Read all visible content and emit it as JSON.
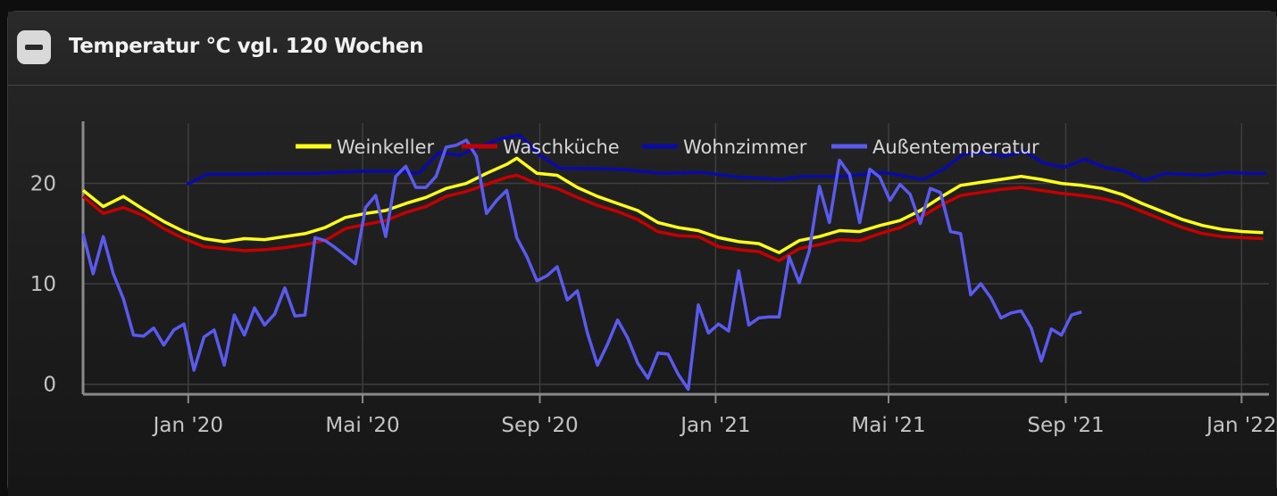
{
  "window": {
    "title": "Temperatur °C vgl. 120 Wochen"
  },
  "chart_data": {
    "type": "line",
    "title": "",
    "xlabel": "",
    "ylabel": "",
    "x_start": "2019-10-20",
    "x_end": "2022-01-20",
    "ylim": [
      -1,
      26
    ],
    "yticks": [
      {
        "value": 0,
        "label": "0"
      },
      {
        "value": 10,
        "label": "10"
      },
      {
        "value": 20,
        "label": "20"
      }
    ],
    "xticks": [
      {
        "date": "2020-01-01",
        "label": "Jan '20"
      },
      {
        "date": "2020-05-01",
        "label": "Mai '20"
      },
      {
        "date": "2020-09-01",
        "label": "Sep '20"
      },
      {
        "date": "2021-01-01",
        "label": "Jan '21"
      },
      {
        "date": "2021-05-01",
        "label": "Mai '21"
      },
      {
        "date": "2021-09-01",
        "label": "Sep '21"
      },
      {
        "date": "2022-01-01",
        "label": "Jan '22"
      }
    ],
    "grid": true,
    "legend_position": "top",
    "series": [
      {
        "name": "Weinkeller",
        "color": "#ffff1a",
        "points": [
          [
            "2019-10-20",
            19.3
          ],
          [
            "2019-11-03",
            17.7
          ],
          [
            "2019-11-17",
            18.7
          ],
          [
            "2019-12-01",
            17.4
          ],
          [
            "2019-12-15",
            16.2
          ],
          [
            "2019-12-29",
            15.2
          ],
          [
            "2020-01-12",
            14.5
          ],
          [
            "2020-01-26",
            14.2
          ],
          [
            "2020-02-09",
            14.5
          ],
          [
            "2020-02-23",
            14.4
          ],
          [
            "2020-03-08",
            14.7
          ],
          [
            "2020-03-22",
            15.0
          ],
          [
            "2020-04-05",
            15.6
          ],
          [
            "2020-04-19",
            16.6
          ],
          [
            "2020-05-03",
            17.0
          ],
          [
            "2020-05-17",
            17.3
          ],
          [
            "2020-05-31",
            18.0
          ],
          [
            "2020-06-14",
            18.6
          ],
          [
            "2020-06-28",
            19.5
          ],
          [
            "2020-07-12",
            20.0
          ],
          [
            "2020-07-26",
            21.0
          ],
          [
            "2020-08-09",
            21.9
          ],
          [
            "2020-08-16",
            22.5
          ],
          [
            "2020-08-30",
            21.0
          ],
          [
            "2020-09-13",
            20.8
          ],
          [
            "2020-09-27",
            19.6
          ],
          [
            "2020-10-11",
            18.7
          ],
          [
            "2020-10-25",
            18.0
          ],
          [
            "2020-11-08",
            17.3
          ],
          [
            "2020-11-22",
            16.1
          ],
          [
            "2020-12-06",
            15.6
          ],
          [
            "2020-12-20",
            15.3
          ],
          [
            "2021-01-03",
            14.6
          ],
          [
            "2021-01-17",
            14.2
          ],
          [
            "2021-01-31",
            14.0
          ],
          [
            "2021-02-14",
            13.1
          ],
          [
            "2021-02-28",
            14.3
          ],
          [
            "2021-03-14",
            14.7
          ],
          [
            "2021-03-28",
            15.3
          ],
          [
            "2021-04-11",
            15.2
          ],
          [
            "2021-04-25",
            15.8
          ],
          [
            "2021-05-09",
            16.3
          ],
          [
            "2021-05-23",
            17.3
          ],
          [
            "2021-06-06",
            18.6
          ],
          [
            "2021-06-20",
            19.8
          ],
          [
            "2021-07-04",
            20.1
          ],
          [
            "2021-07-18",
            20.4
          ],
          [
            "2021-08-01",
            20.7
          ],
          [
            "2021-08-15",
            20.4
          ],
          [
            "2021-08-29",
            20.0
          ],
          [
            "2021-09-12",
            19.8
          ],
          [
            "2021-09-26",
            19.5
          ],
          [
            "2021-10-10",
            18.9
          ],
          [
            "2021-10-24",
            18.0
          ],
          [
            "2021-11-07",
            17.2
          ],
          [
            "2021-11-21",
            16.4
          ],
          [
            "2021-12-05",
            15.8
          ],
          [
            "2021-12-19",
            15.4
          ],
          [
            "2022-01-02",
            15.2
          ],
          [
            "2022-01-16",
            15.1
          ]
        ]
      },
      {
        "name": "Waschküche",
        "color": "#c40000",
        "points": [
          [
            "2019-10-20",
            18.7
          ],
          [
            "2019-11-03",
            17.0
          ],
          [
            "2019-11-17",
            17.6
          ],
          [
            "2019-12-01",
            16.8
          ],
          [
            "2019-12-15",
            15.5
          ],
          [
            "2019-12-29",
            14.5
          ],
          [
            "2020-01-12",
            13.7
          ],
          [
            "2020-01-26",
            13.5
          ],
          [
            "2020-02-09",
            13.3
          ],
          [
            "2020-02-23",
            13.4
          ],
          [
            "2020-03-08",
            13.6
          ],
          [
            "2020-03-22",
            13.9
          ],
          [
            "2020-04-05",
            14.3
          ],
          [
            "2020-04-19",
            15.5
          ],
          [
            "2020-05-03",
            15.9
          ],
          [
            "2020-05-17",
            16.3
          ],
          [
            "2020-05-31",
            17.1
          ],
          [
            "2020-06-14",
            17.7
          ],
          [
            "2020-06-28",
            18.7
          ],
          [
            "2020-07-12",
            19.2
          ],
          [
            "2020-07-26",
            19.9
          ],
          [
            "2020-08-09",
            20.6
          ],
          [
            "2020-08-16",
            20.8
          ],
          [
            "2020-08-30",
            20.0
          ],
          [
            "2020-09-13",
            19.5
          ],
          [
            "2020-09-27",
            18.6
          ],
          [
            "2020-10-11",
            17.8
          ],
          [
            "2020-10-25",
            17.2
          ],
          [
            "2020-11-08",
            16.4
          ],
          [
            "2020-11-22",
            15.2
          ],
          [
            "2020-12-06",
            14.8
          ],
          [
            "2020-12-20",
            14.7
          ],
          [
            "2021-01-03",
            13.7
          ],
          [
            "2021-01-17",
            13.4
          ],
          [
            "2021-01-31",
            13.2
          ],
          [
            "2021-02-14",
            12.3
          ],
          [
            "2021-02-28",
            13.5
          ],
          [
            "2021-03-14",
            13.9
          ],
          [
            "2021-03-28",
            14.4
          ],
          [
            "2021-04-11",
            14.3
          ],
          [
            "2021-04-25",
            15.0
          ],
          [
            "2021-05-09",
            15.6
          ],
          [
            "2021-05-23",
            16.6
          ],
          [
            "2021-06-06",
            17.8
          ],
          [
            "2021-06-20",
            18.8
          ],
          [
            "2021-07-04",
            19.1
          ],
          [
            "2021-07-18",
            19.4
          ],
          [
            "2021-08-01",
            19.6
          ],
          [
            "2021-08-15",
            19.3
          ],
          [
            "2021-08-29",
            19.0
          ],
          [
            "2021-09-12",
            18.8
          ],
          [
            "2021-09-26",
            18.5
          ],
          [
            "2021-10-10",
            18.0
          ],
          [
            "2021-10-24",
            17.2
          ],
          [
            "2021-11-07",
            16.4
          ],
          [
            "2021-11-21",
            15.6
          ],
          [
            "2021-12-05",
            15.0
          ],
          [
            "2021-12-19",
            14.7
          ],
          [
            "2022-01-02",
            14.6
          ],
          [
            "2022-01-16",
            14.5
          ]
        ]
      },
      {
        "name": "Wohnzimmer",
        "color": "#0a0aa8",
        "points": [
          [
            "2019-12-31",
            19.9
          ],
          [
            "2020-01-14",
            20.9
          ],
          [
            "2020-02-04",
            20.9
          ],
          [
            "2020-03-03",
            21.0
          ],
          [
            "2020-03-31",
            21.0
          ],
          [
            "2020-04-28",
            21.2
          ],
          [
            "2020-05-26",
            21.2
          ],
          [
            "2020-06-09",
            21.0
          ],
          [
            "2020-06-23",
            23.1
          ],
          [
            "2020-07-07",
            22.8
          ],
          [
            "2020-07-21",
            23.6
          ],
          [
            "2020-08-04",
            24.4
          ],
          [
            "2020-08-18",
            24.8
          ],
          [
            "2020-09-01",
            22.8
          ],
          [
            "2020-09-15",
            21.5
          ],
          [
            "2020-09-29",
            21.5
          ],
          [
            "2020-10-27",
            21.4
          ],
          [
            "2020-11-24",
            21.0
          ],
          [
            "2020-12-22",
            21.1
          ],
          [
            "2021-01-19",
            20.6
          ],
          [
            "2021-02-16",
            20.4
          ],
          [
            "2021-03-02",
            20.7
          ],
          [
            "2021-03-30",
            20.7
          ],
          [
            "2021-04-27",
            21.1
          ],
          [
            "2021-05-25",
            20.4
          ],
          [
            "2021-06-08",
            21.4
          ],
          [
            "2021-06-22",
            22.9
          ],
          [
            "2021-07-06",
            23.1
          ],
          [
            "2021-07-20",
            22.7
          ],
          [
            "2021-08-03",
            23.2
          ],
          [
            "2021-08-17",
            22.0
          ],
          [
            "2021-08-31",
            21.6
          ],
          [
            "2021-09-14",
            22.4
          ],
          [
            "2021-09-28",
            21.6
          ],
          [
            "2021-10-12",
            21.2
          ],
          [
            "2021-10-26",
            20.3
          ],
          [
            "2021-11-09",
            21.0
          ],
          [
            "2021-11-23",
            20.9
          ],
          [
            "2021-12-07",
            20.8
          ],
          [
            "2021-12-21",
            21.1
          ],
          [
            "2022-01-04",
            21.0
          ],
          [
            "2022-01-18",
            21.0
          ]
        ]
      },
      {
        "name": "Außentemperatur",
        "color": "#5a5af0",
        "points": [
          [
            "2019-10-20",
            15.0
          ],
          [
            "2019-10-27",
            11.0
          ],
          [
            "2019-11-03",
            14.7
          ],
          [
            "2019-11-10",
            11.0
          ],
          [
            "2019-11-17",
            8.5
          ],
          [
            "2019-11-24",
            4.9
          ],
          [
            "2019-12-01",
            4.8
          ],
          [
            "2019-12-08",
            5.6
          ],
          [
            "2019-12-15",
            3.9
          ],
          [
            "2019-12-22",
            5.4
          ],
          [
            "2019-12-29",
            6.0
          ],
          [
            "2020-01-05",
            1.4
          ],
          [
            "2020-01-12",
            4.7
          ],
          [
            "2020-01-19",
            5.4
          ],
          [
            "2020-01-26",
            1.9
          ],
          [
            "2020-02-02",
            6.9
          ],
          [
            "2020-02-09",
            4.9
          ],
          [
            "2020-02-16",
            7.6
          ],
          [
            "2020-02-23",
            5.9
          ],
          [
            "2020-03-01",
            7.0
          ],
          [
            "2020-03-08",
            9.6
          ],
          [
            "2020-03-15",
            6.8
          ],
          [
            "2020-03-22",
            6.9
          ],
          [
            "2020-03-29",
            14.6
          ],
          [
            "2020-04-05",
            14.3
          ],
          [
            "2020-04-12",
            13.6
          ],
          [
            "2020-04-19",
            12.8
          ],
          [
            "2020-04-26",
            12.0
          ],
          [
            "2020-05-03",
            17.6
          ],
          [
            "2020-05-10",
            18.8
          ],
          [
            "2020-05-17",
            14.7
          ],
          [
            "2020-05-24",
            20.7
          ],
          [
            "2020-05-31",
            21.7
          ],
          [
            "2020-06-07",
            19.6
          ],
          [
            "2020-06-14",
            19.6
          ],
          [
            "2020-06-21",
            20.7
          ],
          [
            "2020-06-28",
            23.6
          ],
          [
            "2020-07-05",
            23.8
          ],
          [
            "2020-07-12",
            24.3
          ],
          [
            "2020-07-19",
            22.7
          ],
          [
            "2020-07-26",
            17.0
          ],
          [
            "2020-08-02",
            18.3
          ],
          [
            "2020-08-09",
            19.3
          ],
          [
            "2020-08-16",
            14.6
          ],
          [
            "2020-08-23",
            12.7
          ],
          [
            "2020-08-30",
            10.3
          ],
          [
            "2020-09-06",
            10.8
          ],
          [
            "2020-09-13",
            11.7
          ],
          [
            "2020-09-20",
            8.4
          ],
          [
            "2020-09-27",
            9.3
          ],
          [
            "2020-10-04",
            5.1
          ],
          [
            "2020-10-11",
            1.9
          ],
          [
            "2020-10-18",
            4.0
          ],
          [
            "2020-10-25",
            6.4
          ],
          [
            "2020-11-01",
            4.6
          ],
          [
            "2020-11-08",
            2.1
          ],
          [
            "2020-11-15",
            0.6
          ],
          [
            "2020-11-22",
            3.1
          ],
          [
            "2020-11-29",
            3.0
          ],
          [
            "2020-12-06",
            1.0
          ],
          [
            "2020-12-13",
            -0.5
          ],
          [
            "2020-12-20",
            7.9
          ],
          [
            "2020-12-27",
            5.1
          ],
          [
            "2021-01-03",
            6.0
          ],
          [
            "2021-01-10",
            5.3
          ],
          [
            "2021-01-17",
            11.3
          ],
          [
            "2021-01-24",
            5.9
          ],
          [
            "2021-01-31",
            6.6
          ],
          [
            "2021-02-07",
            6.7
          ],
          [
            "2021-02-14",
            6.7
          ],
          [
            "2021-02-21",
            12.7
          ],
          [
            "2021-02-28",
            10.1
          ],
          [
            "2021-03-07",
            13.3
          ],
          [
            "2021-03-14",
            19.7
          ],
          [
            "2021-03-21",
            16.1
          ],
          [
            "2021-03-28",
            22.3
          ],
          [
            "2021-04-04",
            20.9
          ],
          [
            "2021-04-11",
            16.1
          ],
          [
            "2021-04-18",
            21.4
          ],
          [
            "2021-04-25",
            20.6
          ],
          [
            "2021-05-02",
            18.3
          ],
          [
            "2021-05-09",
            19.9
          ],
          [
            "2021-05-16",
            18.9
          ],
          [
            "2021-05-23",
            16.0
          ],
          [
            "2021-05-30",
            19.5
          ],
          [
            "2021-06-06",
            19.1
          ],
          [
            "2021-06-13",
            15.2
          ],
          [
            "2021-06-20",
            15.0
          ],
          [
            "2021-06-27",
            8.9
          ],
          [
            "2021-07-04",
            10.0
          ],
          [
            "2021-07-11",
            8.6
          ],
          [
            "2021-07-18",
            6.6
          ],
          [
            "2021-07-25",
            7.1
          ],
          [
            "2021-08-01",
            7.3
          ],
          [
            "2021-08-08",
            5.6
          ],
          [
            "2021-08-15",
            2.3
          ],
          [
            "2021-08-22",
            5.5
          ],
          [
            "2021-08-29",
            4.9
          ],
          [
            "2021-09-05",
            6.9
          ],
          [
            "2021-09-12",
            7.2
          ]
        ]
      }
    ]
  }
}
